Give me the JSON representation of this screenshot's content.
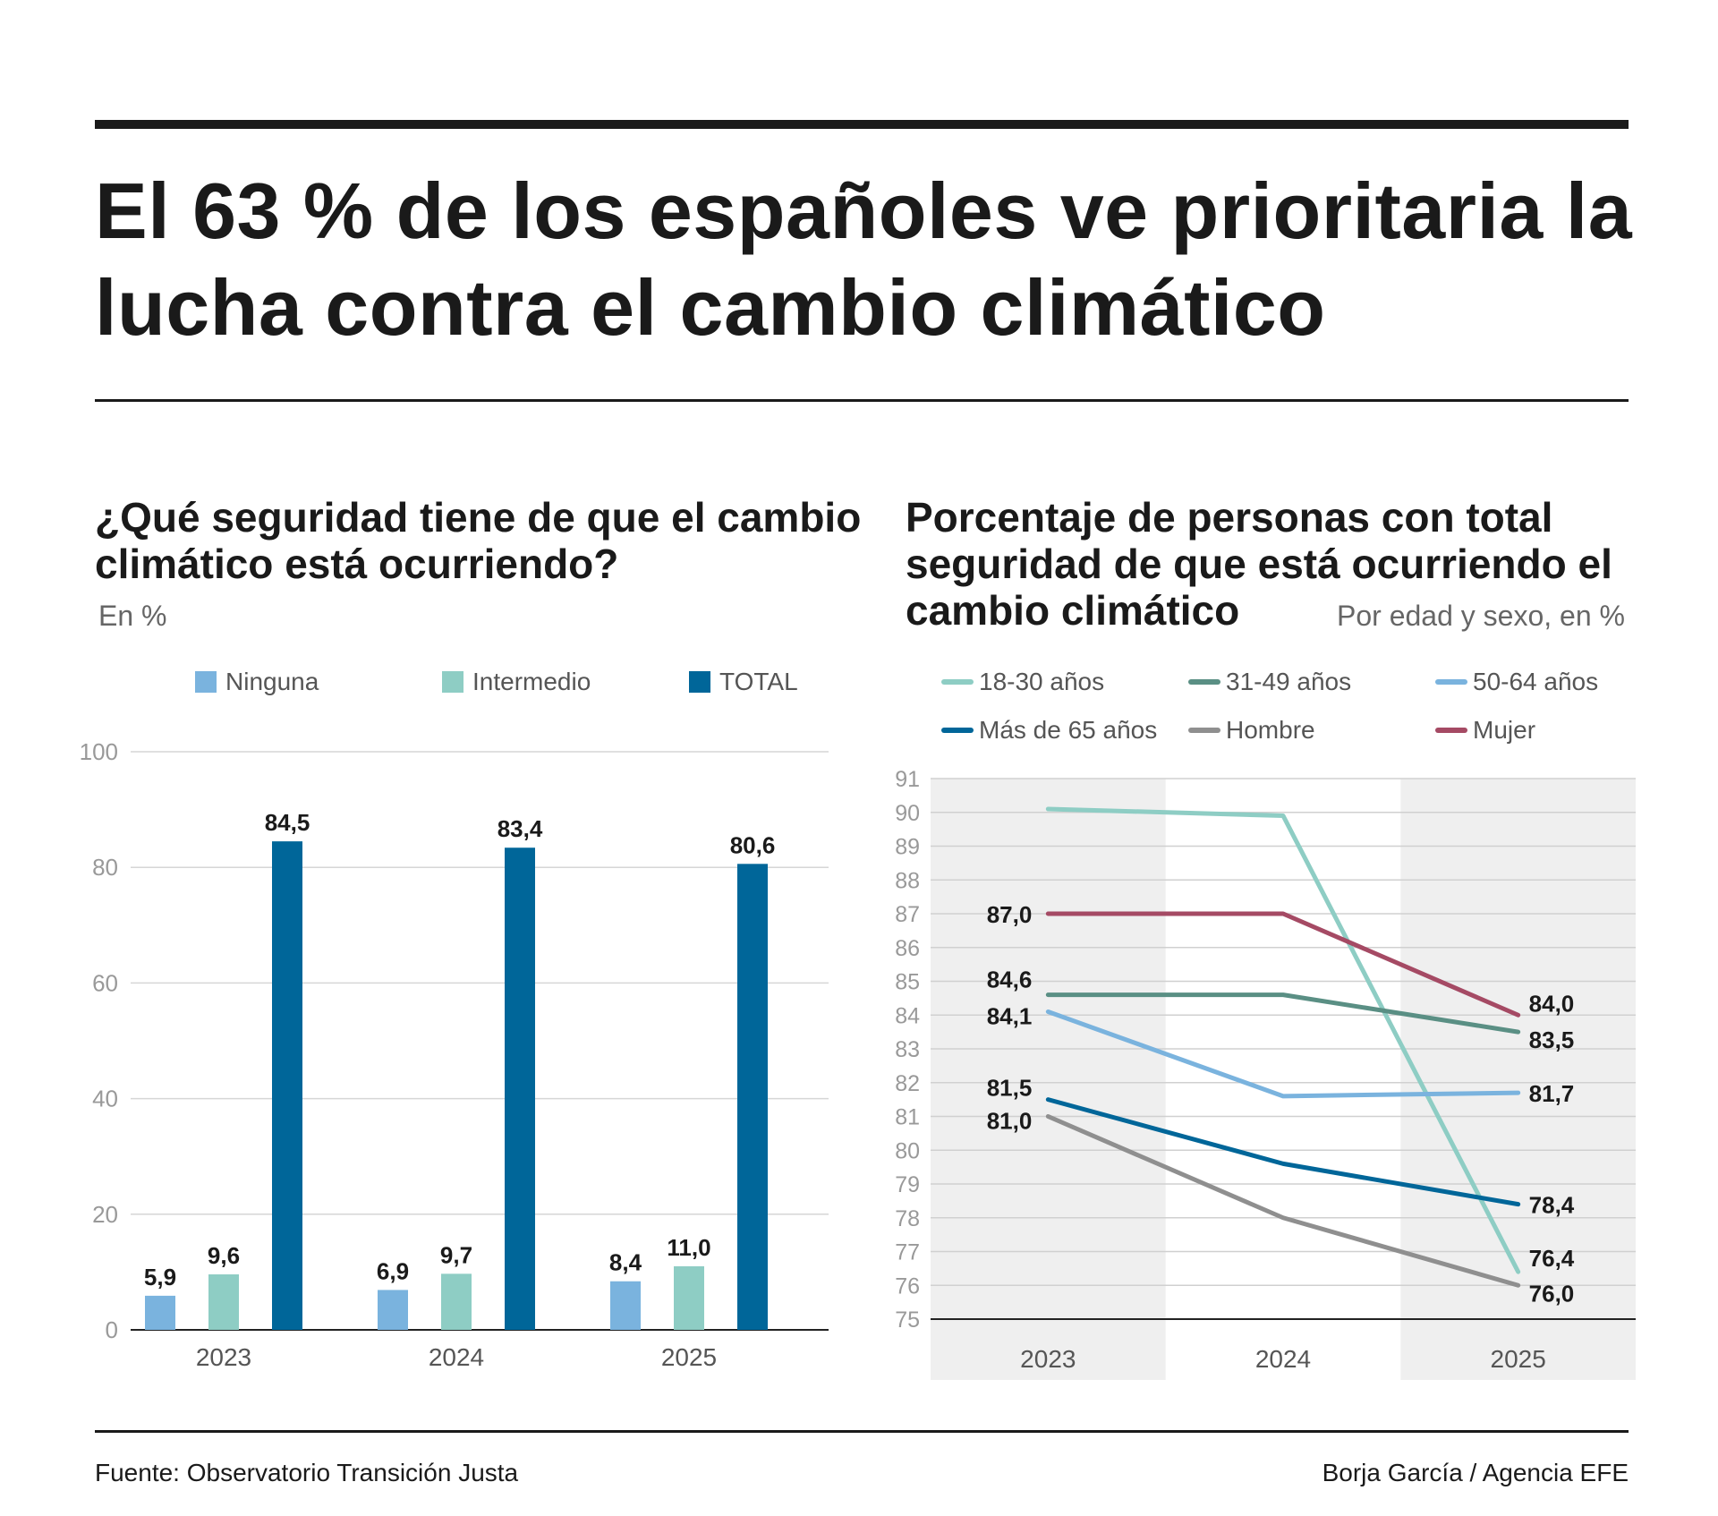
{
  "headline": "El 63 % de los españoles ve prioritaria la lucha contra el cambio climático",
  "left": {
    "title": "¿Qué seguridad tiene de que el cambio climático está ocurriendo?",
    "unit": "En %"
  },
  "right": {
    "title": "Porcentaje de personas con total seguridad de que está ocurriendo el cambio climático",
    "unit": "Por edad y sexo, en %"
  },
  "footer": {
    "source": "Fuente: Observatorio Transición Justa",
    "credit": "Borja García / Agencia EFE"
  },
  "chart_data": [
    {
      "type": "bar",
      "title": "¿Qué seguridad tiene de que el cambio climático está ocurriendo?",
      "ylabel": "En %",
      "categories": [
        "2023",
        "2024",
        "2025"
      ],
      "ylim": [
        0,
        100
      ],
      "yticks": [
        "0",
        "20",
        "40",
        "60",
        "80",
        "100"
      ],
      "series": [
        {
          "name": "Ninguna",
          "color": "#7ab3de",
          "values": [
            5.9,
            6.9,
            8.4
          ],
          "labels": [
            "5,9",
            "6,9",
            "8,4"
          ]
        },
        {
          "name": "Intermedio",
          "color": "#8ecdc4",
          "values": [
            9.6,
            9.7,
            11.0
          ],
          "labels": [
            "9,6",
            "9,7",
            "11,0"
          ]
        },
        {
          "name": "TOTAL",
          "color": "#006699",
          "values": [
            84.5,
            83.4,
            80.6
          ],
          "labels": [
            "84,5",
            "83,4",
            "80,6"
          ]
        }
      ]
    },
    {
      "type": "line",
      "title": "Porcentaje de personas con total seguridad de que está ocurriendo el cambio climático",
      "ylabel": "Por edad y sexo, en %",
      "categories": [
        "2023",
        "2024",
        "2025"
      ],
      "ylim": [
        75,
        91
      ],
      "yticks": [
        "75",
        "76",
        "77",
        "78",
        "79",
        "80",
        "81",
        "82",
        "83",
        "84",
        "85",
        "86",
        "87",
        "88",
        "89",
        "90",
        "91"
      ],
      "series": [
        {
          "name": "18-30 años",
          "color": "#8ecdc4",
          "values": [
            90.1,
            89.9,
            76.4
          ],
          "start_label": "",
          "end_label": "76,4"
        },
        {
          "name": "31-49 años",
          "color": "#5a8f84",
          "values": [
            84.6,
            84.6,
            83.5
          ],
          "start_label": "84,6",
          "end_label": "83,5"
        },
        {
          "name": "50-64 años",
          "color": "#7ab3de",
          "values": [
            84.1,
            81.6,
            81.7
          ],
          "start_label": "84,1",
          "end_label": "81,7"
        },
        {
          "name": "Más de 65 años",
          "color": "#006699",
          "values": [
            81.5,
            79.6,
            78.4
          ],
          "start_label": "81,5",
          "end_label": "78,4"
        },
        {
          "name": "Hombre",
          "color": "#8f8f8f",
          "values": [
            81.0,
            78.0,
            76.0
          ],
          "start_label": "81,0",
          "end_label": "76,0"
        },
        {
          "name": "Mujer",
          "color": "#a54a64",
          "values": [
            87.0,
            87.0,
            84.0
          ],
          "start_label": "87,0",
          "end_label": "84,0"
        }
      ]
    }
  ]
}
